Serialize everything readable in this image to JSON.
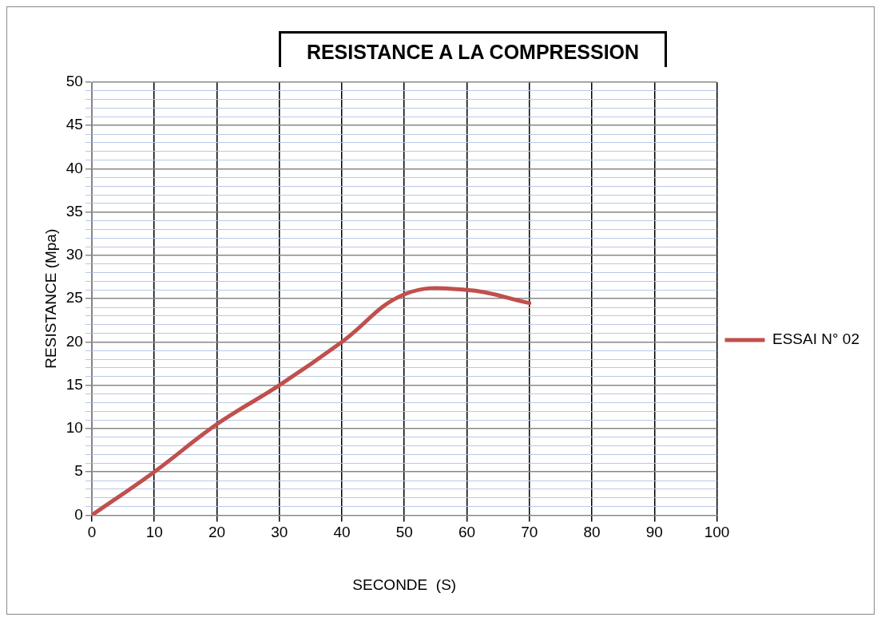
{
  "chart_data": {
    "type": "line",
    "title": "RESISTANCE  A  LA COMPRESSION",
    "xlabel": "SECONDE  (S)",
    "ylabel": "RESISTANCE (Mpa)",
    "x": [
      0,
      10,
      20,
      30,
      40,
      50,
      60,
      70
    ],
    "series": [
      {
        "name": "ESSAI N° 02",
        "color": "#c0504d",
        "values": [
          0,
          5,
          10.5,
          15,
          20,
          25.5,
          26,
          24.5
        ]
      }
    ],
    "xlim": [
      0,
      100
    ],
    "xticks": [
      0,
      10,
      20,
      30,
      40,
      50,
      60,
      70,
      80,
      90,
      100
    ],
    "ylim": [
      0,
      50
    ],
    "yticks": [
      0,
      {
        "value": 1,
        "label": null
      },
      {
        "value": 2,
        "label": null
      },
      {
        "value": 3,
        "label": null
      },
      {
        "value": 4,
        "label": null
      },
      5,
      {
        "value": 6,
        "label": null
      },
      {
        "value": 7,
        "label": null
      },
      {
        "value": 8,
        "label": null
      },
      {
        "value": 9,
        "label": null
      },
      10,
      {
        "value": 11,
        "label": null
      },
      {
        "value": 12,
        "label": null
      },
      {
        "value": 13,
        "label": null
      },
      {
        "value": 14,
        "label": null
      },
      15,
      {
        "value": 16,
        "label": null
      },
      {
        "value": 17,
        "label": null
      },
      {
        "value": 18,
        "label": null
      },
      {
        "value": 19,
        "label": null
      },
      20,
      {
        "value": 21,
        "label": null
      },
      {
        "value": 22,
        "label": null
      },
      {
        "value": 23,
        "label": null
      },
      {
        "value": 24,
        "label": null
      },
      25,
      {
        "value": 26,
        "label": null
      },
      {
        "value": 27,
        "label": null
      },
      {
        "value": 28,
        "label": null
      },
      {
        "value": 29,
        "label": null
      },
      30,
      {
        "value": 31,
        "label": null
      },
      {
        "value": 32,
        "label": null
      },
      {
        "value": 33,
        "label": null
      },
      {
        "value": 34,
        "label": null
      },
      35,
      {
        "value": 36,
        "label": null
      },
      {
        "value": 37,
        "label": null
      },
      {
        "value": 38,
        "label": null
      },
      {
        "value": 39,
        "label": null
      },
      40,
      {
        "value": 41,
        "label": null
      },
      {
        "value": 42,
        "label": null
      },
      {
        "value": 43,
        "label": null
      },
      {
        "value": 44,
        "label": null
      },
      45,
      {
        "value": 46,
        "label": null
      },
      {
        "value": 47,
        "label": null
      },
      {
        "value": 48,
        "label": null
      },
      {
        "value": 49,
        "label": null
      },
      50
    ],
    "grid": true,
    "legend": "right",
    "marker": "none",
    "line_style": "solid"
  }
}
